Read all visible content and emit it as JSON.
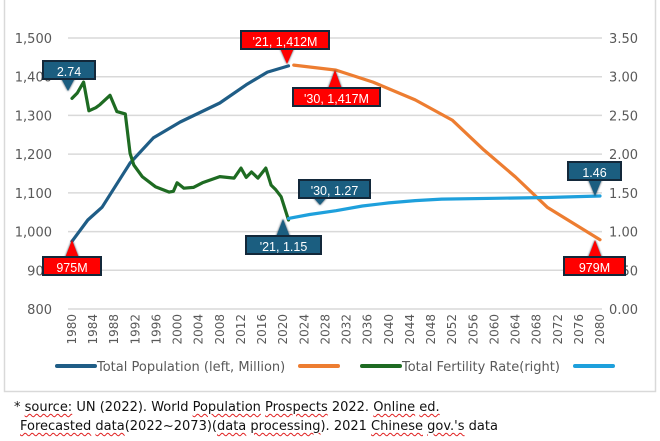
{
  "chart_data": {
    "type": "line",
    "title": "",
    "xlabel": "",
    "ylabel_left": "Total Population (left, Million)",
    "ylabel_right": "Total Fertility Rate(right)",
    "x_ticks": [
      "1980",
      "1984",
      "1988",
      "1992",
      "1996",
      "2000",
      "2004",
      "2008",
      "2012",
      "2016",
      "2020",
      "2024",
      "2028",
      "2032",
      "2036",
      "2040",
      "2044",
      "2048",
      "2052",
      "2056",
      "2060",
      "2064",
      "2068",
      "2072",
      "2076",
      "2080"
    ],
    "xlim": [
      1980,
      2080
    ],
    "y_left": {
      "ticks": [
        "800",
        "900",
        "1,000",
        "1,100",
        "1,200",
        "1,300",
        "1,400",
        "1,500"
      ],
      "lim": [
        800,
        1500
      ]
    },
    "y_right": {
      "ticks": [
        "0.00",
        "0.50",
        "1.00",
        "1.50",
        "2.00",
        "2.50",
        "3.00",
        "3.50"
      ],
      "lim": [
        0,
        3.5
      ]
    },
    "grid": true,
    "legend_position": "bottom",
    "series": [
      {
        "name": "Total Population (left, Million)",
        "axis": "left",
        "color": "#1f5d86",
        "x": [
          1980,
          1983,
          1985.7,
          1991,
          1995.4,
          2000.5,
          2008,
          2013,
          2017,
          2021
        ],
        "y": [
          975,
          1030,
          1063,
          1177,
          1242,
          1283,
          1332,
          1379,
          1412,
          1428
        ]
      },
      {
        "name": "",
        "axis": "left",
        "color": "#ed7d31",
        "x": [
          2022,
          2030,
          2037,
          2045,
          2052,
          2058,
          2064,
          2070,
          2080
        ],
        "y": [
          1430,
          1417,
          1386,
          1340,
          1288,
          1211,
          1141,
          1063,
          979
        ]
      },
      {
        "name": "Total Fertility Rate(right)",
        "axis": "right",
        "color": "#1e6b22",
        "x": [
          1980,
          1981,
          1982.2,
          1983.2,
          1984.5,
          1985.3,
          1987.2,
          1988.5,
          1990.1,
          1991,
          1991.7,
          1993.3,
          1995.8,
          1998.4,
          1999.2,
          1999.9,
          2001.2,
          2003,
          2004.7,
          2008,
          2010.7,
          2012,
          2013,
          2014,
          2015.2,
          2016.7,
          2017.7,
          2018.6,
          2019.6,
          2021
        ],
        "y": [
          2.72,
          2.79,
          2.93,
          2.56,
          2.6,
          2.64,
          2.76,
          2.55,
          2.52,
          2.01,
          1.86,
          1.71,
          1.58,
          1.51,
          1.52,
          1.63,
          1.56,
          1.57,
          1.63,
          1.71,
          1.69,
          1.82,
          1.7,
          1.77,
          1.69,
          1.82,
          1.6,
          1.54,
          1.45,
          1.15
        ]
      },
      {
        "name": "",
        "axis": "right",
        "color": "#1ea0dc",
        "x": [
          2021,
          2025,
          2030,
          2035,
          2040,
          2045,
          2050,
          2060,
          2070,
          2080
        ],
        "y": [
          1.17,
          1.22,
          1.27,
          1.33,
          1.37,
          1.4,
          1.42,
          1.43,
          1.44,
          1.46
        ]
      }
    ],
    "annotations": [
      {
        "text": "'21, 1,412M",
        "style": "red"
      },
      {
        "text": "'30, 1,417M",
        "style": "red"
      },
      {
        "text": "975M",
        "style": "red"
      },
      {
        "text": "979M",
        "style": "red"
      },
      {
        "text": "2.74",
        "style": "blue"
      },
      {
        "text": "'21, 1.15",
        "style": "blue"
      },
      {
        "text": "'30, 1.27",
        "style": "blue"
      },
      {
        "text": "1.46",
        "style": "blue"
      }
    ]
  },
  "footnote": {
    "line1": [
      "* ",
      "source:",
      " UN (2022). World ",
      "Population",
      " ",
      "Prospects",
      " 2022. ",
      "Online",
      " ",
      "ed."
    ],
    "line2": [
      "Forecasted",
      " ",
      "data",
      "(2022~2073)(",
      "data",
      " ",
      "processing",
      "). 2021 ",
      "Chinese",
      " ",
      "gov.'s",
      " data"
    ]
  }
}
